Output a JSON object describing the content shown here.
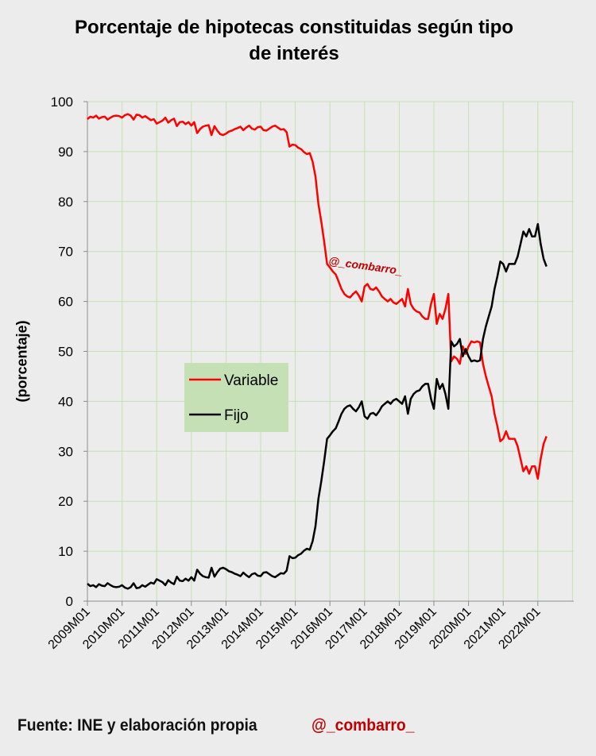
{
  "chart_data": {
    "type": "line",
    "title_line1": "Porcentaje de hipotecas constituidas según tipo",
    "title_line2": "de interés",
    "ylabel": "(porcentaje)",
    "xlabel": "",
    "ylim": [
      0,
      100
    ],
    "yticks": [
      0,
      10,
      20,
      30,
      40,
      50,
      60,
      70,
      80,
      90,
      100
    ],
    "xticks": [
      "2009M01",
      "2010M01",
      "2011M01",
      "2012M01",
      "2013M01",
      "2014M01",
      "2015M01",
      "2016M01",
      "2017M01",
      "2018M01",
      "2019M01",
      "2020M01",
      "2021M01",
      "2022M01"
    ],
    "x_start": "2009M01",
    "x_end": "2022M11",
    "grid": true,
    "legend_position": "center-left",
    "watermark": "@_combarro_",
    "series": [
      {
        "name": "Variable",
        "color": "#ff0000",
        "values": [
          96.5,
          97,
          96.8,
          97.2,
          96.6,
          96.9,
          97,
          96.4,
          96.8,
          97.1,
          97.2,
          97.1,
          96.8,
          97.3,
          97.5,
          97.2,
          96.4,
          97.4,
          97.3,
          96.8,
          97.1,
          96.7,
          96.3,
          96.5,
          95.6,
          95.9,
          96.2,
          96.8,
          95.8,
          96.3,
          96.6,
          95.1,
          95.9,
          96.0,
          95.5,
          95.9,
          95.2,
          95.9,
          93.7,
          94.5,
          95.0,
          95.2,
          95.3,
          93.3,
          95.1,
          94.2,
          93.5,
          93.3,
          93.6,
          94.0,
          94.2,
          94.5,
          94.7,
          95.0,
          94.3,
          94.8,
          95.2,
          94.6,
          94.4,
          94.9,
          95.0,
          94.3,
          94.2,
          94.6,
          95.0,
          95.2,
          94.8,
          94.4,
          94.5,
          93.9,
          91.0,
          91.4,
          91.3,
          90.8,
          90.5,
          89.9,
          89.5,
          89.7,
          88.0,
          85.0,
          79.5,
          76.0,
          72.0,
          67.5,
          66.8,
          66.0,
          65.4,
          64.0,
          62.5,
          61.5,
          61.0,
          60.8,
          61.5,
          62.0,
          61.2,
          60.0,
          63.0,
          63.5,
          62.5,
          62.3,
          62.8,
          62.0,
          61.0,
          60.5,
          60.0,
          60.5,
          59.8,
          59.5,
          60.0,
          60.5,
          59.0,
          62.5,
          59.5,
          58.5,
          58.0,
          57.8,
          57.0,
          56.5,
          56.5,
          59.5,
          61.5,
          55.5,
          57.5,
          56.5,
          58.5,
          61.5,
          48.0,
          49.0,
          48.5,
          47.5,
          51.0,
          49.5,
          51.0,
          52.0,
          51.8,
          52.0,
          51.8,
          47.5,
          45.0,
          43.0,
          41.0,
          37.5,
          35.0,
          32.0,
          32.5,
          34.0,
          32.5,
          32.5,
          32.5,
          31.0,
          28.5,
          26.0,
          27.0,
          25.5,
          27.0,
          27.0,
          24.5,
          28.5,
          31.5,
          33.0
        ]
      },
      {
        "name": "Fijo",
        "color": "#000000",
        "values": [
          3.5,
          3.0,
          3.2,
          2.8,
          3.4,
          3.1,
          3.0,
          3.6,
          3.2,
          2.9,
          2.8,
          2.9,
          3.2,
          2.7,
          2.5,
          2.8,
          3.6,
          2.6,
          2.7,
          3.2,
          2.9,
          3.3,
          3.7,
          3.5,
          4.4,
          4.1,
          3.8,
          3.2,
          4.2,
          3.7,
          3.4,
          4.9,
          4.1,
          4.0,
          4.5,
          4.1,
          4.8,
          4.1,
          6.3,
          5.5,
          5.0,
          4.8,
          4.7,
          6.7,
          4.9,
          5.8,
          6.5,
          6.7,
          6.4,
          6.0,
          5.8,
          5.5,
          5.3,
          5.0,
          5.7,
          5.2,
          4.8,
          5.4,
          5.6,
          5.1,
          5.0,
          5.7,
          5.8,
          5.4,
          5.0,
          4.8,
          5.2,
          5.6,
          5.5,
          6.1,
          9.0,
          8.6,
          8.7,
          9.2,
          9.5,
          10.1,
          10.5,
          10.3,
          12.0,
          15.0,
          20.5,
          24.0,
          28.0,
          32.5,
          33.2,
          34.0,
          34.6,
          36.0,
          37.5,
          38.5,
          39.0,
          39.2,
          38.5,
          38.0,
          38.8,
          40.0,
          37.0,
          36.5,
          37.5,
          37.7,
          37.2,
          38.0,
          39.0,
          39.5,
          40.0,
          39.5,
          40.2,
          40.5,
          40.0,
          39.5,
          41.0,
          37.5,
          40.5,
          41.5,
          42.0,
          42.2,
          43.0,
          43.5,
          43.5,
          40.5,
          38.5,
          44.5,
          42.5,
          43.5,
          41.5,
          38.5,
          52.0,
          51.0,
          51.5,
          52.5,
          49.0,
          50.5,
          49.0,
          48.0,
          48.2,
          48.0,
          48.2,
          52.5,
          55.0,
          57.0,
          59.0,
          62.5,
          65.0,
          68.0,
          67.5,
          66.0,
          67.5,
          67.5,
          67.5,
          69.0,
          71.5,
          74.0,
          73.0,
          74.5,
          73.0,
          73.0,
          75.5,
          71.5,
          68.5,
          67.0
        ]
      }
    ]
  },
  "footer": {
    "source": "Fuente: INE  y elaboración propia",
    "handle": "@_combarro_"
  }
}
